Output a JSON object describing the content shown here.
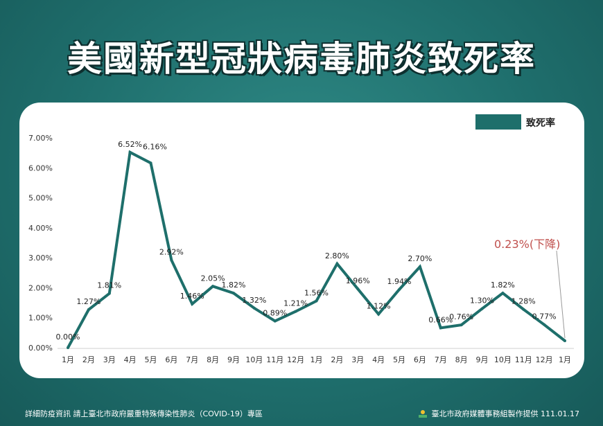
{
  "title": "美國新型冠狀病毒肺炎致死率",
  "footer": {
    "left": "詳細防疫資訊 請上臺北市政府嚴重特殊傳染性肺炎（COVID-19）專區",
    "right": "臺北市政府媒體事務組製作提供 111.01.17"
  },
  "colors": {
    "line": "#1e6f6b",
    "callout": "#c0504d",
    "background": "#227775"
  },
  "chart_data": {
    "type": "line",
    "categories": [
      "1月",
      "2月",
      "3月",
      "4月",
      "5月",
      "6月",
      "7月",
      "8月",
      "9月",
      "10月",
      "11月",
      "12月",
      "1月",
      "2月",
      "3月",
      "4月",
      "5月",
      "6月",
      "7月",
      "8月",
      "9月",
      "10月",
      "11月",
      "12月",
      "1月"
    ],
    "series": [
      {
        "name": "致死率",
        "values": [
          0.0,
          1.27,
          1.81,
          6.52,
          6.16,
          2.92,
          1.46,
          2.05,
          1.82,
          1.32,
          0.89,
          1.21,
          1.56,
          2.8,
          1.96,
          1.12,
          1.94,
          2.7,
          0.66,
          0.76,
          1.3,
          1.82,
          1.28,
          0.77,
          0.23
        ]
      }
    ],
    "data_labels": [
      "0.00%",
      "1.27%",
      "1.81%",
      "6.52%",
      "6.16%",
      "2.92%",
      "1.46%",
      "2.05%",
      "1.82%",
      "1.32%",
      "0.89%",
      "1.21%",
      "1.56%",
      "2.80%",
      "1.96%",
      "1.12%",
      "1.94%",
      "2.70%",
      "0.66%",
      "0.76%",
      "1.30%",
      "1.82%",
      "1.28%",
      "0.77%",
      ""
    ],
    "y_ticks": [
      "0.00%",
      "1.00%",
      "2.00%",
      "3.00%",
      "4.00%",
      "5.00%",
      "6.00%",
      "7.00%"
    ],
    "ylim": [
      0,
      7
    ],
    "grid": false,
    "legend": "top-right",
    "annotation": "0.23%(下降)"
  }
}
